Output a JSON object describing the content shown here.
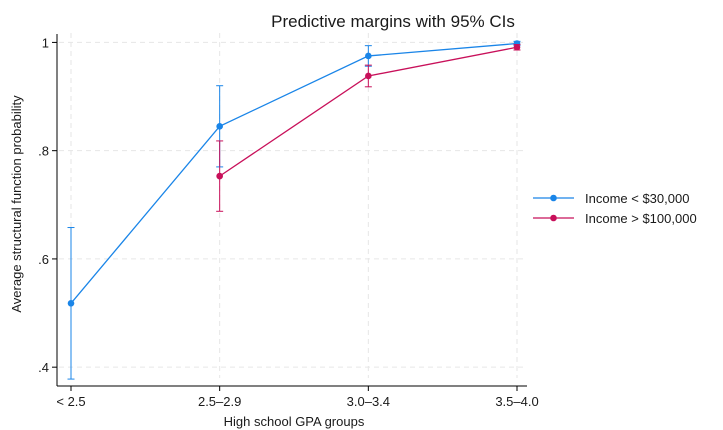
{
  "chart_data": {
    "type": "line",
    "title": "Predictive margins with 95% CIs",
    "xlabel": "High school GPA groups",
    "ylabel": "Average structural function probability",
    "categories": [
      "< 2.5",
      "2.5–2.9",
      "3.0–3.4",
      "3.5–4.0"
    ],
    "ylim": [
      0.38,
      1.01
    ],
    "yticks": [
      0.4,
      0.6,
      0.8,
      1.0
    ],
    "ytick_labels": [
      ".4",
      ".6",
      ".8",
      "1"
    ],
    "grid": true,
    "legend_position": "right",
    "error_bars": "95% CI",
    "series": [
      {
        "name": "Income < $30,000",
        "color": "#1a85e8",
        "values": [
          0.518,
          0.845,
          0.975,
          0.998
        ],
        "ci_low": [
          0.378,
          0.77,
          0.956,
          0.994
        ],
        "ci_high": [
          0.658,
          0.92,
          0.994,
          1.002
        ]
      },
      {
        "name": "Income > $100,000",
        "color": "#c8105a",
        "values": [
          null,
          0.753,
          0.938,
          0.991
        ],
        "ci_low": [
          null,
          0.688,
          0.918,
          0.986
        ],
        "ci_high": [
          null,
          0.818,
          0.958,
          0.996
        ]
      }
    ]
  }
}
